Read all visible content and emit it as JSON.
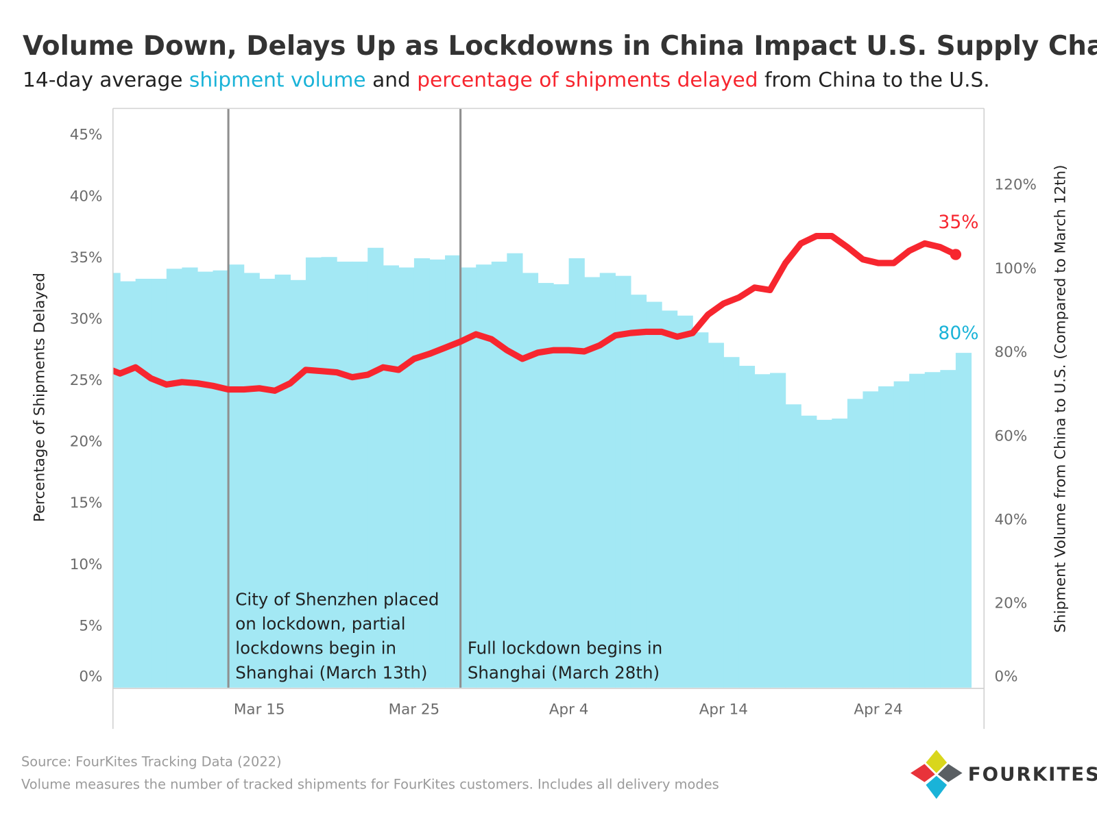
{
  "chart_data": {
    "type": "bar",
    "title": "Volume Down, Delays Up as Lockdowns in China Impact U.S. Supply Chain",
    "subtitle": {
      "prefix": "14-day average",
      "middle": "and",
      "suffix": "from China to the U.S."
    },
    "categories": [
      null,
      null,
      null,
      null,
      null,
      null,
      null,
      null,
      null,
      null,
      "Mar 15",
      null,
      null,
      null,
      null,
      null,
      null,
      null,
      null,
      null,
      "Mar 25",
      null,
      null,
      null,
      null,
      null,
      null,
      null,
      null,
      null,
      "Apr 4",
      null,
      null,
      null,
      null,
      null,
      null,
      null,
      null,
      null,
      "Apr 14",
      null,
      null,
      null,
      null,
      null,
      null,
      null,
      null,
      null,
      "Apr 24",
      null,
      null,
      null,
      null,
      null
    ],
    "series": [
      {
        "name": "shipment volume",
        "type": "bar",
        "axis": "y2",
        "color": "#a3e8f4",
        "label_color": "#1ab3d8",
        "values": [
          99.1,
          97.1,
          97.7,
          97.7,
          100.1,
          100.4,
          99.4,
          99.7,
          101.1,
          99.1,
          97.7,
          98.7,
          97.4,
          102.8,
          102.9,
          101.8,
          101.8,
          105.1,
          100.9,
          100.4,
          102.6,
          102.3,
          103.3,
          100.4,
          101.1,
          101.8,
          103.8,
          99.1,
          96.7,
          96.4,
          102.6,
          98.1,
          99.1,
          98.4,
          93.9,
          92.2,
          90.1,
          88.9,
          84.9,
          82.4,
          79.0,
          76.9,
          74.9,
          75.2,
          67.7,
          65.0,
          64.0,
          64.3,
          69.0,
          70.8,
          72.0,
          73.2,
          75.0,
          75.4,
          75.9,
          80
        ],
        "value_labels": [
          null,
          null,
          null,
          null,
          null,
          null,
          null,
          null,
          null,
          null,
          null,
          null,
          null,
          null,
          null,
          null,
          null,
          null,
          null,
          null,
          null,
          null,
          null,
          null,
          null,
          null,
          null,
          null,
          null,
          null,
          null,
          null,
          null,
          null,
          null,
          null,
          null,
          null,
          null,
          null,
          null,
          null,
          null,
          null,
          null,
          null,
          null,
          null,
          null,
          null,
          null,
          null,
          null,
          null,
          null,
          "80%"
        ]
      },
      {
        "name": "percentage of shipments delayed",
        "type": "line",
        "color": "#f7262f",
        "label_color": "#f7262f",
        "values": [
          26.1,
          25.6,
          26.1,
          25.2,
          24.7,
          24.9,
          24.8,
          24.6,
          24.3,
          24.3,
          24.4,
          24.2,
          24.8,
          25.9,
          25.8,
          25.7,
          25.3,
          25.5,
          26.1,
          25.9,
          26.8,
          27.2,
          27.7,
          28.2,
          28.8,
          28.4,
          27.5,
          26.8,
          27.3,
          27.5,
          27.5,
          27.4,
          27.9,
          28.7,
          28.9,
          29.0,
          29.0,
          28.6,
          28.9,
          30.4,
          31.3,
          31.8,
          32.6,
          32.4,
          34.6,
          36.2,
          36.8,
          36.8,
          35.9,
          34.9,
          34.6,
          34.6,
          35.6,
          36.2,
          35.9,
          35.3
        ],
        "value_labels": [
          null,
          null,
          null,
          null,
          null,
          null,
          null,
          null,
          null,
          null,
          null,
          null,
          null,
          null,
          null,
          null,
          null,
          null,
          null,
          null,
          null,
          null,
          null,
          null,
          null,
          null,
          null,
          null,
          null,
          null,
          null,
          null,
          null,
          null,
          null,
          null,
          null,
          null,
          null,
          null,
          null,
          null,
          null,
          null,
          null,
          null,
          null,
          null,
          null,
          null,
          null,
          null,
          null,
          null,
          null,
          "35%"
        ]
      }
    ],
    "ylabel": "Percentage of Shipments Delayed",
    "y2label": "Shipment Volume from China to U.S. (Compared to March 12th)",
    "ylim": [
      0,
      47.2
    ],
    "yticks": [
      {
        "value": 0,
        "label": "0%"
      },
      {
        "value": 5,
        "label": "5%"
      },
      {
        "value": 10,
        "label": "10%"
      },
      {
        "value": 15,
        "label": "15%"
      },
      {
        "value": 20,
        "label": "20%"
      },
      {
        "value": 25,
        "label": "25%"
      },
      {
        "value": 30,
        "label": "30%"
      },
      {
        "value": 35,
        "label": "35%"
      },
      {
        "value": 40,
        "label": "40%"
      },
      {
        "value": 45,
        "label": "45%"
      }
    ],
    "y2lim": [
      0,
      138.4
    ],
    "y2ticks": [
      {
        "value": 0,
        "label": "0%"
      },
      {
        "value": 20,
        "label": "20%"
      },
      {
        "value": 40,
        "label": "40%"
      },
      {
        "value": 60,
        "label": "60%"
      },
      {
        "value": 80,
        "label": "80%"
      },
      {
        "value": 100,
        "label": "100%"
      },
      {
        "value": 120,
        "label": "120%"
      }
    ],
    "grid": false,
    "annotations": [
      {
        "x": 8,
        "lines": [
          "City of Shenzhen placed",
          "on lockdown, partial",
          "lockdowns begin in",
          "Shanghai (March 13th)"
        ]
      },
      {
        "x": 23,
        "lines": [
          "Full lockdown begins in",
          "Shanghai (March 28th)"
        ]
      }
    ],
    "source": "Source: FourKites Tracking Data (2022)",
    "note": "Volume measures the number of tracked shipments for FourKites customers. Includes all delivery modes"
  },
  "logo": {
    "text": "FOURKITES"
  }
}
